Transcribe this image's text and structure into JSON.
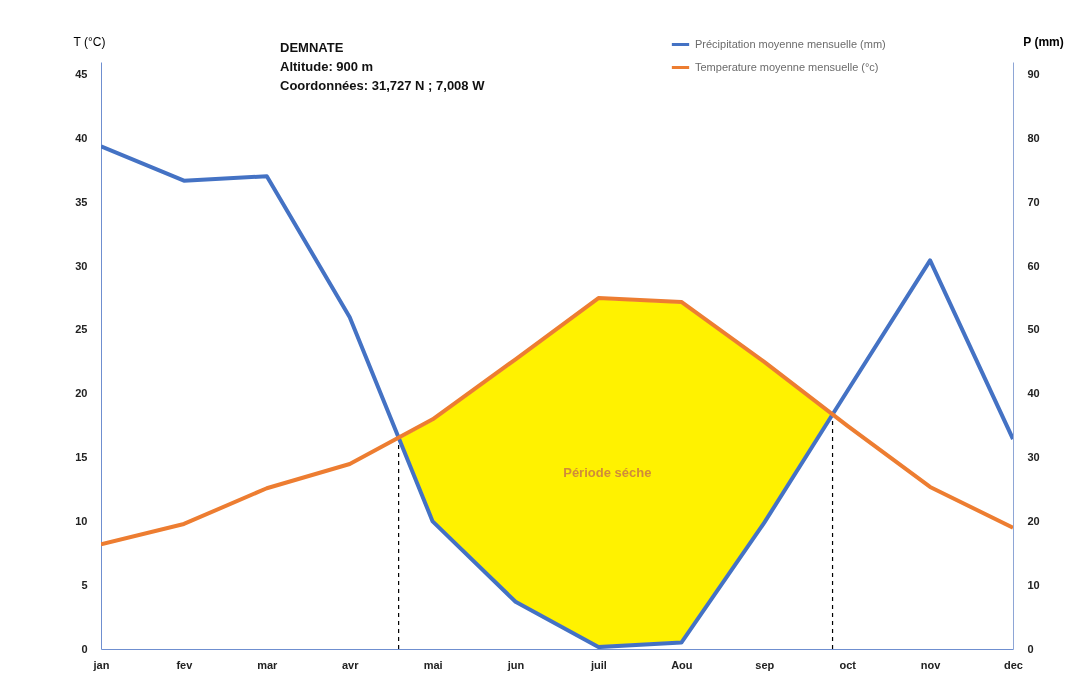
{
  "chart_data": {
    "type": "line",
    "annotations": [
      "DEMNATE",
      "Altitude: 900 m",
      "Coordonnées: 31,727 N ; 7,008 W",
      "Période séche"
    ],
    "ylabel": "T (°C)",
    "y2label": "P (mm)",
    "categories": [
      "jan",
      "fev",
      "mar",
      "avr",
      "mai",
      "jun",
      "juil",
      "Aou",
      "sep",
      "oct",
      "nov",
      "dec"
    ],
    "ylim": [
      0,
      46
    ],
    "yticks": [
      0,
      5,
      10,
      15,
      20,
      25,
      30,
      35,
      40,
      45
    ],
    "y2lim": [
      0,
      92
    ],
    "y2ticks": [
      0,
      10,
      20,
      30,
      40,
      50,
      60,
      70,
      80,
      90
    ],
    "series": [
      {
        "name": "Précipitation moyenne mensuelle (mm)",
        "color": "#4472c4",
        "axis": "y2",
        "values": [
          78.8,
          73.4,
          74.1,
          52,
          20,
          7.4,
          0.3,
          1,
          19.8,
          40.4,
          60.9,
          32.9
        ]
      },
      {
        "name": "Temperature moyenne mensuelle (°c)",
        "color": "#ed7d31",
        "values": [
          8.2,
          9.8,
          12.6,
          14.5,
          18,
          22.7,
          27.5,
          27.2,
          22.5,
          17.5,
          12.7,
          9.5
        ]
      }
    ],
    "grid": false,
    "legend": "top right"
  }
}
